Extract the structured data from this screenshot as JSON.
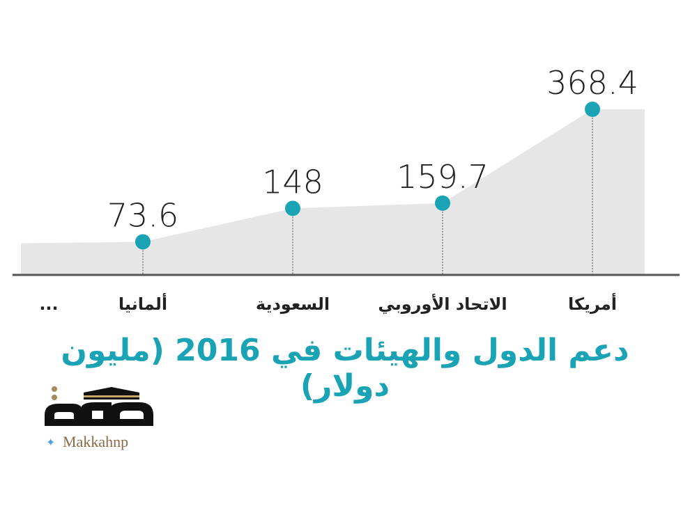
{
  "chart_data": {
    "type": "area",
    "title": "دعم الدول والهيئات في 2016 (مليون دولار)",
    "categories": [
      "...",
      "ألمانيا",
      "السعودية",
      "الاتحاد الأوروبي",
      "أمريكا"
    ],
    "values": [
      null,
      73.6,
      148,
      159.7,
      368.4
    ],
    "value_labels": [
      "",
      "73.6",
      "148",
      "159.7",
      "368.4"
    ],
    "xlabel": "",
    "ylabel": "",
    "ylim": [
      0,
      368.4
    ],
    "grid": false,
    "colors": {
      "area": "#e6e6e7",
      "marker": "#1aa3b5",
      "axis": "#555555",
      "title": "#1aa3b5"
    }
  },
  "logo": {
    "text": "مكة",
    "handle": "Makkahnp",
    "icon": "twitter-bird-icon"
  }
}
